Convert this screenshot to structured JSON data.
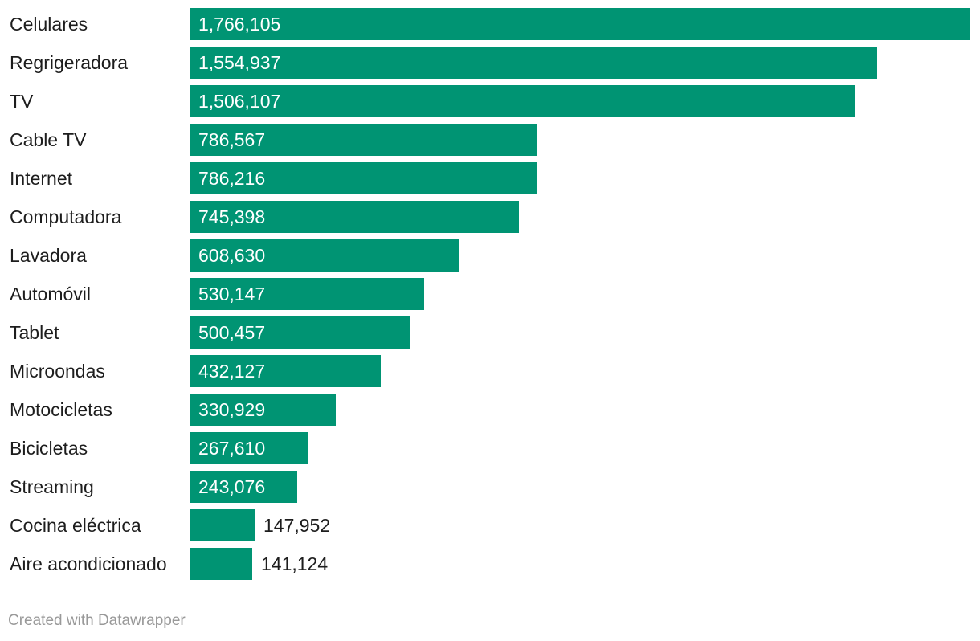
{
  "chart_data": {
    "type": "bar",
    "orientation": "horizontal",
    "categories": [
      "Celulares",
      "Regrigeradora",
      "TV",
      "Cable TV",
      "Internet",
      "Computadora",
      "Lavadora",
      "Automóvil",
      "Tablet",
      "Microondas",
      "Motocicletas",
      "Bicicletas",
      "Streaming",
      "Cocina eléctrica",
      "Aire acondicionado"
    ],
    "values": [
      1766105,
      1554937,
      1506107,
      786567,
      786216,
      745398,
      608630,
      530147,
      500457,
      432127,
      330929,
      267610,
      243076,
      147952,
      141124
    ],
    "value_labels": [
      "1,766,105",
      "1,554,937",
      "1,506,107",
      "786,567",
      "786,216",
      "745,398",
      "608,630",
      "530,147",
      "500,457",
      "432,127",
      "330,929",
      "267,610",
      "243,076",
      "147,952",
      "141,124"
    ],
    "xlim": [
      0,
      1766105
    ],
    "title": "",
    "xlabel": "",
    "ylabel": "",
    "grid": false
  },
  "colors": {
    "bar": "#009473",
    "label_inside": "#ffffff",
    "label_outside": "#1d1d1d"
  },
  "footer": {
    "credit": "Created with Datawrapper"
  }
}
